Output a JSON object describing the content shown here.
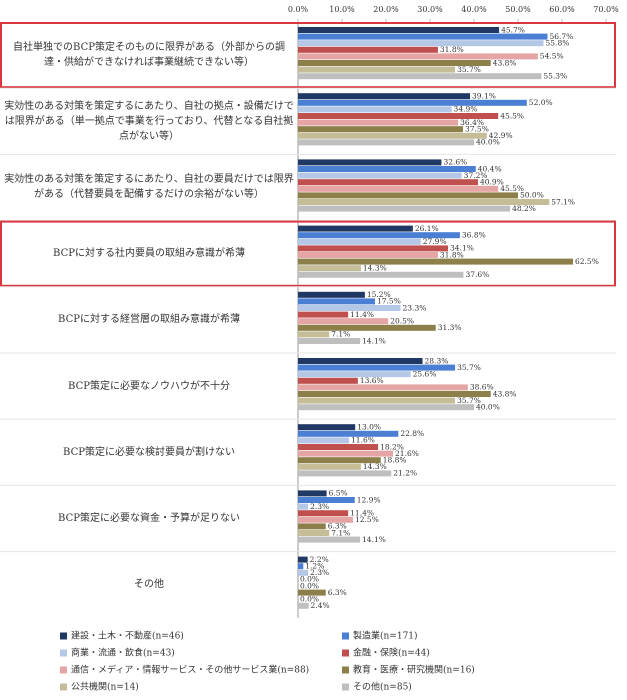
{
  "chart_data": {
    "type": "hbar",
    "categories": [
      "自社単独でのBCP策定そのものに限界がある（外部からの調達・供給ができなければ事業継続できない等）",
      "実効性のある対策を策定するにあたり、自社の拠点・設備だけでは限界がある（単一拠点で事業を行っており、代替となる自社拠点がない等）",
      "実効性のある対策を策定するにあたり、自社の要員だけでは限界がある（代替要員を配備するだけの余裕がない等）",
      "BCPに対する社内要員の取組み意識が希薄",
      "BCPに対する経営層の取組み意識が希薄",
      "BCP策定に必要なノウハウが不十分",
      "BCP策定に必要な検討要員が割けない",
      "BCP策定に必要な資金・予算が足りない",
      "その他"
    ],
    "series": [
      {
        "name": "建設・土木・不動産(n=46)",
        "color": "#1f3864",
        "values": [
          45.7,
          39.1,
          32.6,
          26.1,
          15.2,
          28.3,
          13.0,
          6.5,
          2.2
        ],
        "value_labels": [
          "45.7%",
          "39.1%",
          "32.6%",
          "26.1%",
          "15.2%",
          "28.3%",
          "13.0%",
          "6.5%",
          "2.2%"
        ]
      },
      {
        "name": "製造業(n=171)",
        "color": "#4a7fd4",
        "values": [
          56.7,
          52.0,
          40.4,
          36.8,
          17.5,
          35.7,
          22.8,
          12.9,
          1.2
        ],
        "value_labels": [
          "56.7%",
          "52.0%",
          "40.4%",
          "36.8%",
          "17.5%",
          "35.7%",
          "22.8%",
          "12.9%",
          "1.2%"
        ]
      },
      {
        "name": "商業・流通・飲食(n=43)",
        "color": "#b4c7e7",
        "values": [
          55.8,
          34.9,
          37.2,
          27.9,
          23.3,
          25.6,
          11.6,
          2.3,
          2.3
        ],
        "value_labels": [
          "55.8%",
          "34.9%",
          "37.2%",
          "27.9%",
          "23.3%",
          "25.6%",
          "11.6%",
          "2.3%",
          "2.3%"
        ]
      },
      {
        "name": "金融・保険(n=44)",
        "color": "#c0504d",
        "values": [
          31.8,
          45.5,
          40.9,
          34.1,
          11.4,
          13.6,
          18.2,
          11.4,
          0.0
        ],
        "value_labels": [
          "31.8%",
          "45.5%",
          "40.9%",
          "34.1%",
          "11.4%",
          "13.6%",
          "18.2%",
          "11.4%",
          "0.0%"
        ]
      },
      {
        "name": "通信・メディア・情報サービス・その他サービス業(n=88)",
        "color": "#e6a5a5",
        "values": [
          54.5,
          36.4,
          45.5,
          31.8,
          20.5,
          38.6,
          21.6,
          12.5,
          0.0
        ],
        "value_labels": [
          "54.5%",
          "36.4%",
          "45.5%",
          "31.8%",
          "20.5%",
          "38.6%",
          "21.6%",
          "12.5%",
          "0.0%"
        ]
      },
      {
        "name": "教育・医療・研究機関(n=16)",
        "color": "#8c7f4a",
        "values": [
          43.8,
          37.5,
          50.0,
          62.5,
          31.3,
          43.8,
          18.8,
          6.3,
          6.3
        ],
        "value_labels": [
          "43.8%",
          "37.5%",
          "50.0%",
          "62.5%",
          "31.3%",
          "43.8%",
          "18.8%",
          "6.3%",
          "6.3%"
        ]
      },
      {
        "name": "公共機関(n=14)",
        "color": "#c4bd97",
        "values": [
          35.7,
          42.9,
          57.1,
          14.3,
          7.1,
          35.7,
          14.3,
          7.1,
          0.0
        ],
        "value_labels": [
          "35.7%",
          "42.9%",
          "57.1%",
          "14.3%",
          "7.1%",
          "35.7%",
          "14.3%",
          "7.1%",
          "0.0%"
        ]
      },
      {
        "name": "その他(n=85)",
        "color": "#bfbfbf",
        "values": [
          55.3,
          40.0,
          48.2,
          37.6,
          14.1,
          40.0,
          21.2,
          14.1,
          2.4
        ],
        "value_labels": [
          "55.3%",
          "40.0%",
          "48.2%",
          "37.6%",
          "14.1%",
          "40.0%",
          "21.2%",
          "14.1%",
          "2.4%"
        ]
      }
    ],
    "xlim": [
      0,
      70
    ],
    "xticks": [
      {
        "value": 0,
        "label": "0.0%"
      },
      {
        "value": 10,
        "label": "10.0%"
      },
      {
        "value": 20,
        "label": "20.0%"
      },
      {
        "value": 30,
        "label": "30.0%"
      },
      {
        "value": 40,
        "label": "40.0%"
      },
      {
        "value": 50,
        "label": "50.0%"
      },
      {
        "value": 60,
        "label": "60.0%"
      },
      {
        "value": 70,
        "label": "70.0%"
      }
    ],
    "highlighted_categories": [
      0,
      3
    ],
    "highlight_color": "#d9363e",
    "grid": false,
    "legend": "bottom"
  }
}
